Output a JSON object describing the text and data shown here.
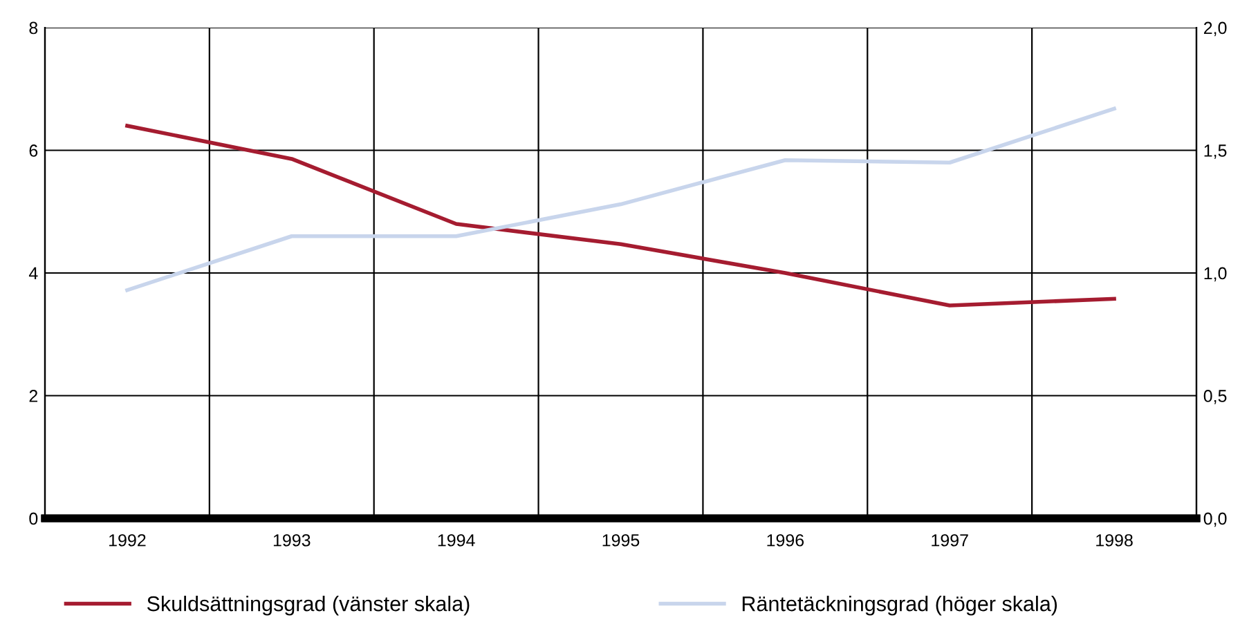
{
  "chart_data": {
    "type": "line",
    "categories": [
      "1992",
      "1993",
      "1994",
      "1995",
      "1996",
      "1997",
      "1998"
    ],
    "series": [
      {
        "name": "Skuldsättningsgrad (vänster skala)",
        "color": "#a51c30",
        "values": [
          6.4,
          5.86,
          4.8,
          4.47,
          4.0,
          3.47,
          3.58
        ]
      },
      {
        "name": "Räntetäckningsgrad (höger skala)",
        "color": "#c8d5ec",
        "axis": "y2",
        "values": [
          0.93,
          1.15,
          1.15,
          1.28,
          1.46,
          1.45,
          1.67
        ]
      }
    ],
    "ylim": [
      0,
      8
    ],
    "yticks": [
      0,
      2,
      4,
      6,
      8
    ],
    "y2lim": [
      0,
      2
    ],
    "y2ticks": [
      {
        "value": 0,
        "label": "0,0"
      },
      {
        "value": 0.5,
        "label": "0,5"
      },
      {
        "value": 1,
        "label": "1,0"
      },
      {
        "value": 1.5,
        "label": "1,5"
      },
      {
        "value": 2,
        "label": "2,0"
      }
    ],
    "grid": true,
    "legend": "bottom",
    "marker": "none",
    "line_style": "solid"
  }
}
